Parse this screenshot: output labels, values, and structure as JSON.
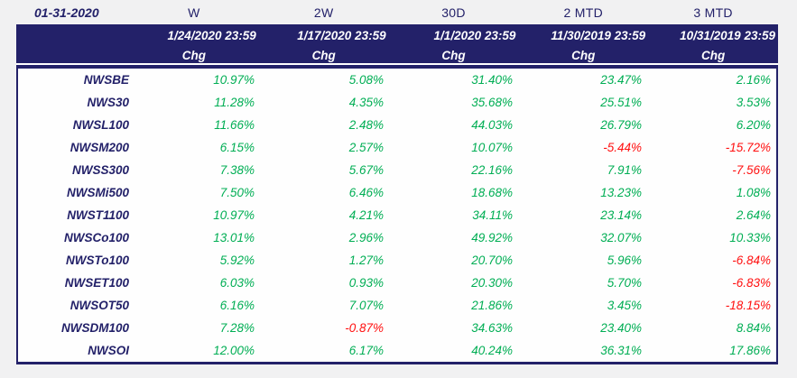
{
  "colors": {
    "navy": "#232169",
    "green": "#00AE54",
    "red": "#FF1010",
    "page_bg": "#F1F1F2",
    "body_bg": "#FEFEFE"
  },
  "title_row": {
    "report_date": "01-31-2020",
    "periods": [
      "W",
      "2W",
      "30D",
      "2 MTD",
      "3 MTD"
    ]
  },
  "header": {
    "as_of_dates": [
      "1/24/2020 23:59",
      "1/17/2020 23:59",
      "1/1/2020 23:59",
      "11/30/2019 23:59",
      "10/31/2019 23:59"
    ],
    "chg_label": "Chg"
  },
  "chart_data": {
    "type": "table",
    "title": "01-31-2020",
    "categories": [
      "W",
      "2W",
      "30D",
      "2 MTD",
      "3 MTD"
    ],
    "as_of_dates": [
      "1/24/2020 23:59",
      "1/17/2020 23:59",
      "1/1/2020 23:59",
      "11/30/2019 23:59",
      "10/31/2019 23:59"
    ],
    "series": [
      {
        "name": "NWSBE",
        "values": [
          "10.97%",
          "5.08%",
          "31.40%",
          "23.47%",
          "2.16%"
        ]
      },
      {
        "name": "NWS30",
        "values": [
          "11.28%",
          "4.35%",
          "35.68%",
          "25.51%",
          "3.53%"
        ]
      },
      {
        "name": "NWSL100",
        "values": [
          "11.66%",
          "2.48%",
          "44.03%",
          "26.79%",
          "6.20%"
        ]
      },
      {
        "name": "NWSM200",
        "values": [
          "6.15%",
          "2.57%",
          "10.07%",
          "-5.44%",
          "-15.72%"
        ]
      },
      {
        "name": "NWSS300",
        "values": [
          "7.38%",
          "5.67%",
          "22.16%",
          "7.91%",
          "-7.56%"
        ]
      },
      {
        "name": "NWSMi500",
        "values": [
          "7.50%",
          "6.46%",
          "18.68%",
          "13.23%",
          "1.08%"
        ]
      },
      {
        "name": "NWST1100",
        "values": [
          "10.97%",
          "4.21%",
          "34.11%",
          "23.14%",
          "2.64%"
        ]
      },
      {
        "name": "NWSCo100",
        "values": [
          "13.01%",
          "2.96%",
          "49.92%",
          "32.07%",
          "10.33%"
        ]
      },
      {
        "name": "NWSTo100",
        "values": [
          "5.92%",
          "1.27%",
          "20.70%",
          "5.96%",
          "-6.84%"
        ]
      },
      {
        "name": "NWSET100",
        "values": [
          "6.03%",
          "0.93%",
          "20.30%",
          "5.70%",
          "-6.83%"
        ]
      },
      {
        "name": "NWSOT50",
        "values": [
          "6.16%",
          "7.07%",
          "21.86%",
          "3.45%",
          "-18.15%"
        ]
      },
      {
        "name": "NWSDM100",
        "values": [
          "7.28%",
          "-0.87%",
          "34.63%",
          "23.40%",
          "8.84%"
        ]
      },
      {
        "name": "NWSOI",
        "values": [
          "12.00%",
          "6.17%",
          "40.24%",
          "36.31%",
          "17.86%"
        ]
      }
    ]
  }
}
